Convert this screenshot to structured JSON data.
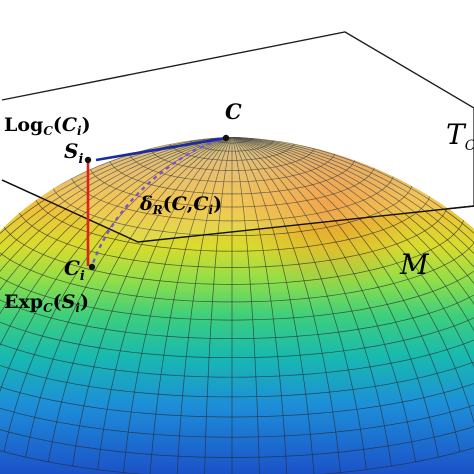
{
  "labels": {
    "log": {
      "main": "Log",
      "sub": "C",
      "open": "(",
      "arg": "C",
      "argsub": "i",
      "close": ")"
    },
    "s_i": {
      "main": "S",
      "sub": "i"
    },
    "c_top": "C",
    "tangent": {
      "main": "T",
      "sub": "C"
    },
    "delta": {
      "main": "δ",
      "sub": "R",
      "open": "(",
      "a": "C",
      "comma": ",",
      "b": "C",
      "bsub": "i",
      "close": ")"
    },
    "c_i": {
      "main": "C",
      "sub": "i"
    },
    "manifold": "M",
    "exp": {
      "main": "Exp",
      "sub": "C",
      "open": "(",
      "arg": "S",
      "argsub": "i",
      "close": ")"
    }
  },
  "colors": {
    "log_map_segment": "#e02020",
    "tangent_vector": "#1a2aa0",
    "geodesic_dashed": "#7a55c8",
    "plane_edge": "#111111"
  }
}
